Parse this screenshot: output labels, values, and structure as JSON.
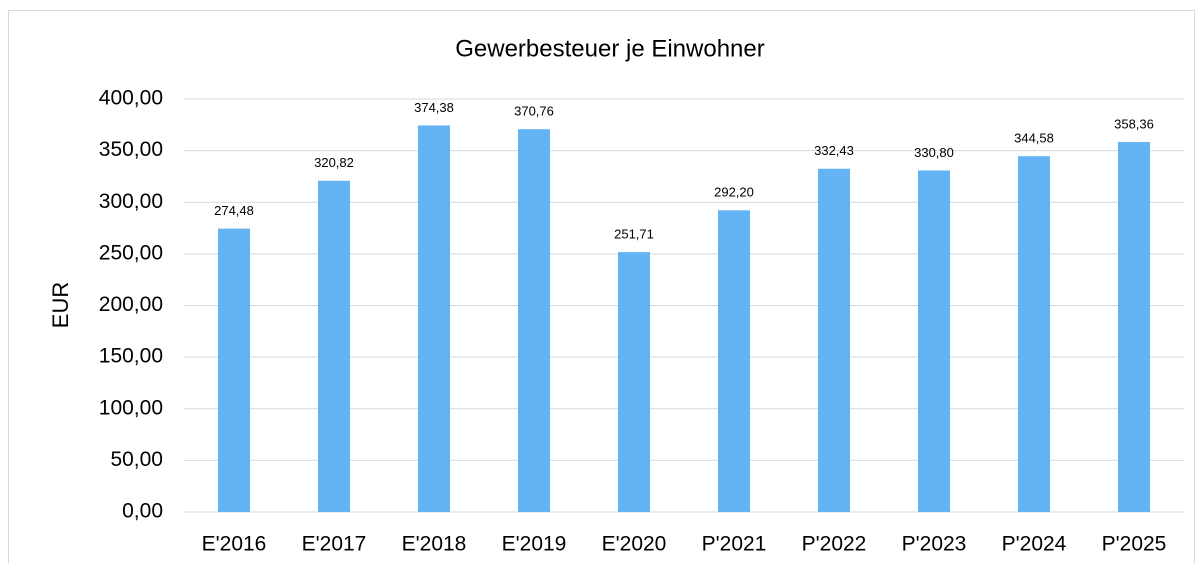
{
  "chart_data": {
    "type": "bar",
    "title": "Gewerbesteuer je Einwohner",
    "y_label": "EUR",
    "categories": [
      "E'2016",
      "E'2017",
      "E'2018",
      "E'2019",
      "E'2020",
      "P'2021",
      "P'2022",
      "P'2023",
      "P'2024",
      "P'2025"
    ],
    "values": [
      274.48,
      320.82,
      374.38,
      370.76,
      251.71,
      292.2,
      332.43,
      330.8,
      344.58,
      358.36
    ],
    "value_labels": [
      "274,48",
      "320,82",
      "374,38",
      "370,76",
      "251,71",
      "292,20",
      "332,43",
      "330,80",
      "344,58",
      "358,36"
    ],
    "color": "#63b3f5",
    "ylim": [
      0,
      400
    ],
    "yticks": [
      {
        "value": 0,
        "label": "0,00"
      },
      {
        "value": 50,
        "label": "50,00"
      },
      {
        "value": 100,
        "label": "100,00"
      },
      {
        "value": 150,
        "label": "150,00"
      },
      {
        "value": 200,
        "label": "200,00"
      },
      {
        "value": 250,
        "label": "250,00"
      },
      {
        "value": 300,
        "label": "300,00"
      },
      {
        "value": 350,
        "label": "350,00"
      },
      {
        "value": 400,
        "label": "400,00"
      }
    ],
    "grid": true
  }
}
